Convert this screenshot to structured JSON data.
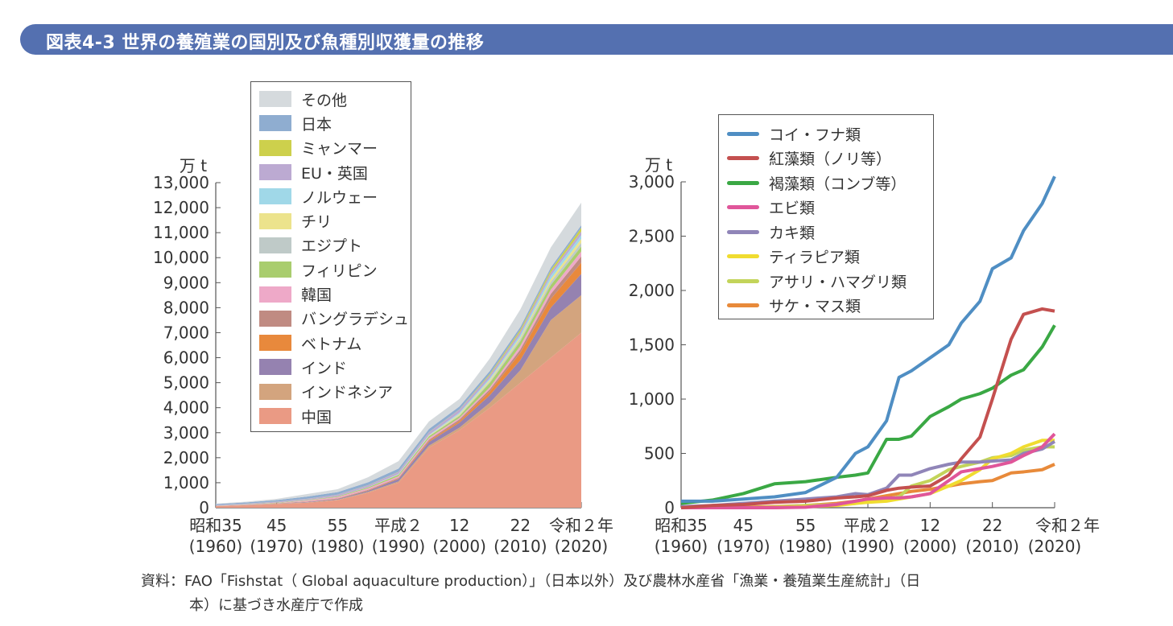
{
  "header": {
    "title": "図表4-3 世界の養殖業の国別及び魚種別収獲量の推移"
  },
  "note": {
    "line1": "資料：FAO「Fishstat（ Global aquaculture production）」（日本以外）及び農林水産省「漁業・養殖業生産統計」（日",
    "line2": "本）に基づき水産庁で作成"
  },
  "chart_data": [
    {
      "type": "area",
      "stacked": true,
      "ylabel": "万 t",
      "ylim": [
        0,
        13000
      ],
      "yticks": [
        "0",
        "1,000",
        "2,000",
        "3,000",
        "4,000",
        "5,000",
        "6,000",
        "7,000",
        "8,000",
        "9,000",
        "10,000",
        "11,000",
        "12,000",
        "13,000"
      ],
      "xlim": [
        1960,
        2020
      ],
      "xticks": [
        {
          "top": "昭和35",
          "bottom": "(1960)",
          "year": 1960
        },
        {
          "top": "45",
          "bottom": "(1970)",
          "year": 1970
        },
        {
          "top": "55",
          "bottom": "(1980)",
          "year": 1980
        },
        {
          "top": "平成２",
          "bottom": "(1990)",
          "year": 1990
        },
        {
          "top": "12",
          "bottom": "(2000)",
          "year": 2000
        },
        {
          "top": "22",
          "bottom": "(2010)",
          "year": 2010
        },
        {
          "top": "令和２年",
          "bottom": "(2020)",
          "year": 2020
        }
      ],
      "legend": "top-left",
      "x": [
        1960,
        1965,
        1970,
        1975,
        1980,
        1985,
        1990,
        1995,
        2000,
        2005,
        2010,
        2015,
        2020
      ],
      "series": [
        {
          "name": "中国",
          "color": "#ea9a84",
          "values": [
            60,
            100,
            150,
            200,
            300,
            600,
            1000,
            2400,
            3100,
            4000,
            5000,
            6000,
            7000
          ]
        },
        {
          "name": "インドネシア",
          "color": "#d3a47e",
          "values": [
            5,
            8,
            10,
            15,
            20,
            30,
            50,
            80,
            100,
            200,
            500,
            1500,
            1500
          ]
        },
        {
          "name": "インド",
          "color": "#9582b0",
          "values": [
            5,
            8,
            10,
            20,
            30,
            50,
            100,
            150,
            200,
            300,
            400,
            500,
            850
          ]
        },
        {
          "name": "ベトナム",
          "color": "#e8893c",
          "values": [
            2,
            3,
            5,
            5,
            10,
            15,
            20,
            40,
            60,
            150,
            300,
            350,
            450
          ]
        },
        {
          "name": "バングラデシュ",
          "color": "#c08b82",
          "values": [
            2,
            3,
            5,
            10,
            15,
            20,
            30,
            50,
            70,
            90,
            130,
            200,
            250
          ]
        },
        {
          "name": "韓国",
          "color": "#eea9c8",
          "values": [
            3,
            5,
            10,
            40,
            50,
            60,
            60,
            70,
            60,
            80,
            140,
            170,
            200
          ]
        },
        {
          "name": "フィリピン",
          "color": "#a9cd6e",
          "values": [
            5,
            8,
            15,
            20,
            30,
            40,
            60,
            70,
            80,
            180,
            190,
            190,
            200
          ]
        },
        {
          "name": "エジプト",
          "color": "#bfcac8",
          "values": [
            2,
            2,
            2,
            3,
            3,
            5,
            7,
            8,
            30,
            50,
            90,
            120,
            150
          ]
        },
        {
          "name": "チリ",
          "color": "#ece38c",
          "values": [
            0,
            0,
            0,
            0,
            0,
            1,
            5,
            20,
            50,
            70,
            70,
            110,
            150
          ]
        },
        {
          "name": "ノルウェー",
          "color": "#a0d8e8",
          "values": [
            0,
            0,
            0,
            0,
            1,
            3,
            15,
            25,
            50,
            65,
            100,
            140,
            150
          ]
        },
        {
          "name": "EU・英国",
          "color": "#bcaad2",
          "values": [
            20,
            25,
            35,
            40,
            60,
            70,
            80,
            100,
            120,
            120,
            120,
            130,
            150
          ]
        },
        {
          "name": "ミャンマー",
          "color": "#cdd04c",
          "values": [
            1,
            1,
            2,
            3,
            3,
            5,
            7,
            8,
            10,
            50,
            80,
            100,
            150
          ]
        },
        {
          "name": "日本",
          "color": "#8fadd0",
          "values": [
            40,
            50,
            60,
            90,
            100,
            120,
            130,
            130,
            120,
            120,
            110,
            100,
            100
          ]
        },
        {
          "name": "その他",
          "color": "#d5dadd",
          "values": [
            20,
            30,
            50,
            100,
            120,
            200,
            300,
            300,
            300,
            500,
            700,
            800,
            900
          ]
        }
      ]
    },
    {
      "type": "line",
      "ylabel": "万 t",
      "ylim": [
        0,
        3000
      ],
      "yticks": [
        "0",
        "500",
        "1,000",
        "1,500",
        "2,000",
        "2,500",
        "3,000"
      ],
      "xlim": [
        1960,
        2020
      ],
      "xticks": [
        {
          "top": "昭和35",
          "bottom": "(1960)",
          "year": 1960
        },
        {
          "top": "45",
          "bottom": "(1970)",
          "year": 1970
        },
        {
          "top": "55",
          "bottom": "(1980)",
          "year": 1980
        },
        {
          "top": "平成２",
          "bottom": "(1990)",
          "year": 1990
        },
        {
          "top": "12",
          "bottom": "(2000)",
          "year": 2000
        },
        {
          "top": "22",
          "bottom": "(2010)",
          "year": 2010
        },
        {
          "top": "令和２年",
          "bottom": "(2020)",
          "year": 2020
        }
      ],
      "legend": "top-left",
      "x": [
        1960,
        1965,
        1970,
        1975,
        1980,
        1985,
        1988,
        1990,
        1993,
        1995,
        1997,
        2000,
        2003,
        2005,
        2008,
        2010,
        2013,
        2015,
        2018,
        2020
      ],
      "series": [
        {
          "name": "コイ・フナ類",
          "color": "#4f8ec3",
          "values": [
            60,
            60,
            80,
            100,
            140,
            280,
            500,
            560,
            800,
            1200,
            1260,
            1380,
            1500,
            1700,
            1900,
            2200,
            2300,
            2550,
            2800,
            3050
          ]
        },
        {
          "name": "紅藻類（ノリ等）",
          "color": "#c4504f",
          "values": [
            0,
            20,
            30,
            50,
            60,
            90,
            100,
            110,
            160,
            180,
            190,
            200,
            300,
            450,
            650,
            1000,
            1550,
            1780,
            1830,
            1810
          ]
        },
        {
          "name": "褐藻類（コンブ等）",
          "color": "#3aa844",
          "values": [
            40,
            70,
            130,
            220,
            240,
            280,
            300,
            320,
            630,
            630,
            660,
            840,
            930,
            1000,
            1050,
            1100,
            1220,
            1270,
            1480,
            1680
          ]
        },
        {
          "name": "エビ類",
          "color": "#e0569a",
          "values": [
            0,
            0,
            0,
            0,
            5,
            30,
            60,
            80,
            90,
            90,
            100,
            130,
            250,
            330,
            360,
            380,
            420,
            480,
            560,
            680
          ]
        },
        {
          "name": "カキ類",
          "color": "#9085b8",
          "values": [
            10,
            20,
            40,
            60,
            80,
            100,
            130,
            120,
            180,
            300,
            300,
            360,
            400,
            420,
            420,
            430,
            440,
            500,
            540,
            610
          ]
        },
        {
          "name": "ティラピア類",
          "color": "#f0dc30",
          "values": [
            0,
            0,
            0,
            0,
            10,
            20,
            40,
            50,
            60,
            80,
            100,
            130,
            200,
            250,
            350,
            450,
            500,
            560,
            620,
            620
          ]
        },
        {
          "name": "アサリ・ハマグリ類",
          "color": "#c3d45a",
          "values": [
            0,
            0,
            0,
            5,
            20,
            30,
            40,
            60,
            80,
            100,
            200,
            250,
            350,
            380,
            420,
            460,
            480,
            530,
            560,
            560
          ]
        },
        {
          "name": "サケ・マス類",
          "color": "#e88a3a",
          "values": [
            0,
            0,
            5,
            10,
            20,
            40,
            60,
            80,
            110,
            130,
            150,
            170,
            200,
            220,
            240,
            250,
            320,
            330,
            350,
            400
          ]
        }
      ]
    }
  ]
}
